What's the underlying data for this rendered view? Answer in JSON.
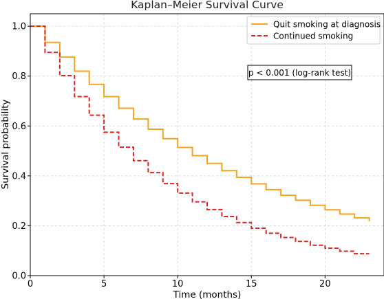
{
  "chart_data": {
    "type": "line",
    "title": "Kaplan–Meier Survival Curve",
    "xlabel": "Time (months)",
    "ylabel": "Survival probability",
    "xlim": [
      0,
      24
    ],
    "ylim": [
      0,
      1.05
    ],
    "xticks": [
      0,
      5,
      10,
      15,
      20
    ],
    "yticks": [
      0.0,
      0.2,
      0.4,
      0.6,
      0.8,
      1.0
    ],
    "grid": true,
    "legend_position": "top-right",
    "annotation": "p < 0.001 (log-rank test)",
    "series": [
      {
        "name": "Quit smoking at diagnosis",
        "color": "#f5a21c",
        "dash": "solid",
        "x": [
          0,
          1,
          2,
          3,
          4,
          5,
          6,
          7,
          8,
          9,
          10,
          11,
          12,
          13,
          14,
          15,
          16,
          17,
          18,
          19,
          20,
          21,
          22,
          23
        ],
        "y": [
          1.0,
          0.935,
          0.876,
          0.82,
          0.767,
          0.718,
          0.671,
          0.628,
          0.587,
          0.549,
          0.514,
          0.481,
          0.45,
          0.421,
          0.394,
          0.368,
          0.345,
          0.322,
          0.302,
          0.282,
          0.264,
          0.247,
          0.232,
          0.218
        ]
      },
      {
        "name": "Continued smoking",
        "color": "#e0231e",
        "dash": "dashed",
        "x": [
          0,
          1,
          2,
          3,
          4,
          5,
          6,
          7,
          8,
          9,
          10,
          11,
          12,
          13,
          14,
          15,
          16,
          17,
          18,
          19,
          20,
          21,
          22,
          23
        ],
        "y": [
          1.0,
          0.895,
          0.802,
          0.718,
          0.643,
          0.575,
          0.515,
          0.461,
          0.413,
          0.369,
          0.331,
          0.296,
          0.265,
          0.237,
          0.213,
          0.19,
          0.17,
          0.153,
          0.137,
          0.122,
          0.11,
          0.098,
          0.088,
          0.088
        ]
      }
    ]
  }
}
